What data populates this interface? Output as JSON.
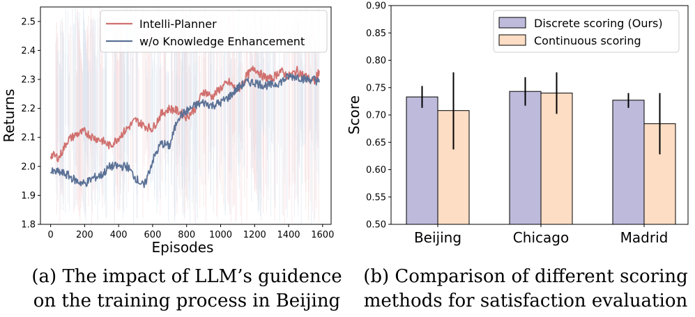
{
  "chart_data": [
    {
      "type": "line",
      "xlabel": "Episodes",
      "ylabel": "Returns",
      "xlim": [
        -60,
        1650
      ],
      "ylim": [
        1.8,
        2.55
      ],
      "xticks": [
        0,
        200,
        400,
        600,
        800,
        1000,
        1200,
        1400,
        1600
      ],
      "yticks": [
        1.8,
        1.9,
        2.0,
        2.1,
        2.2,
        2.3,
        2.4,
        2.5
      ],
      "legend_position": "top-right",
      "series": [
        {
          "name": "Intelli-Planner",
          "color": "#d0706e",
          "x": [
            0,
            50,
            100,
            150,
            200,
            250,
            300,
            350,
            400,
            450,
            500,
            550,
            600,
            650,
            700,
            750,
            800,
            850,
            900,
            950,
            1000,
            1050,
            1100,
            1150,
            1200,
            1250,
            1300,
            1350,
            1400,
            1450,
            1500,
            1550,
            1580
          ],
          "y": [
            2.04,
            2.03,
            2.09,
            2.11,
            2.12,
            2.1,
            2.09,
            2.07,
            2.1,
            2.13,
            2.16,
            2.14,
            2.13,
            2.18,
            2.2,
            2.19,
            2.17,
            2.2,
            2.26,
            2.24,
            2.27,
            2.29,
            2.26,
            2.31,
            2.34,
            2.31,
            2.3,
            2.33,
            2.31,
            2.33,
            2.31,
            2.29,
            2.33
          ]
        },
        {
          "name": "w/o Knowledge Enhancement",
          "color": "#5b7196",
          "x": [
            0,
            50,
            100,
            150,
            200,
            250,
            300,
            350,
            400,
            450,
            500,
            550,
            600,
            650,
            700,
            750,
            800,
            850,
            900,
            950,
            1000,
            1050,
            1100,
            1150,
            1200,
            1250,
            1300,
            1350,
            1400,
            1450,
            1500,
            1550,
            1580
          ],
          "y": [
            1.98,
            1.98,
            1.97,
            1.95,
            1.94,
            1.96,
            1.97,
            2.0,
            2.0,
            2.0,
            1.96,
            1.93,
            2.02,
            2.08,
            2.07,
            2.17,
            2.19,
            2.21,
            2.22,
            2.21,
            2.22,
            2.24,
            2.27,
            2.29,
            2.29,
            2.28,
            2.28,
            2.29,
            2.31,
            2.31,
            2.3,
            2.3,
            2.29
          ]
        }
      ],
      "caption": [
        "(a) The impact of LLM’s guidence",
        "on the training process in Beijing"
      ]
    },
    {
      "type": "bar",
      "ylabel": "Score",
      "ylim": [
        0.5,
        0.9
      ],
      "yticks": [
        "0.50",
        "0.55",
        "0.60",
        "0.65",
        "0.70",
        "0.75",
        "0.80",
        "0.85",
        "0.90"
      ],
      "categories": [
        "Beijing",
        "Chicago",
        "Madrid"
      ],
      "legend_position": "top-right",
      "series": [
        {
          "name": "Discrete scoring (Ours)",
          "color": "#bdbadb",
          "values": [
            0.733,
            0.743,
            0.727
          ],
          "err_low": [
            0.713,
            0.717,
            0.713
          ],
          "err_high": [
            0.753,
            0.769,
            0.74
          ]
        },
        {
          "name": "Continuous scoring",
          "color": "#fdddc4",
          "values": [
            0.708,
            0.74,
            0.684
          ],
          "err_low": [
            0.637,
            0.702,
            0.628
          ],
          "err_high": [
            0.778,
            0.778,
            0.74
          ]
        }
      ],
      "caption": [
        "(b) Comparison of different scoring",
        "methods for satisfaction evaluation"
      ]
    }
  ]
}
